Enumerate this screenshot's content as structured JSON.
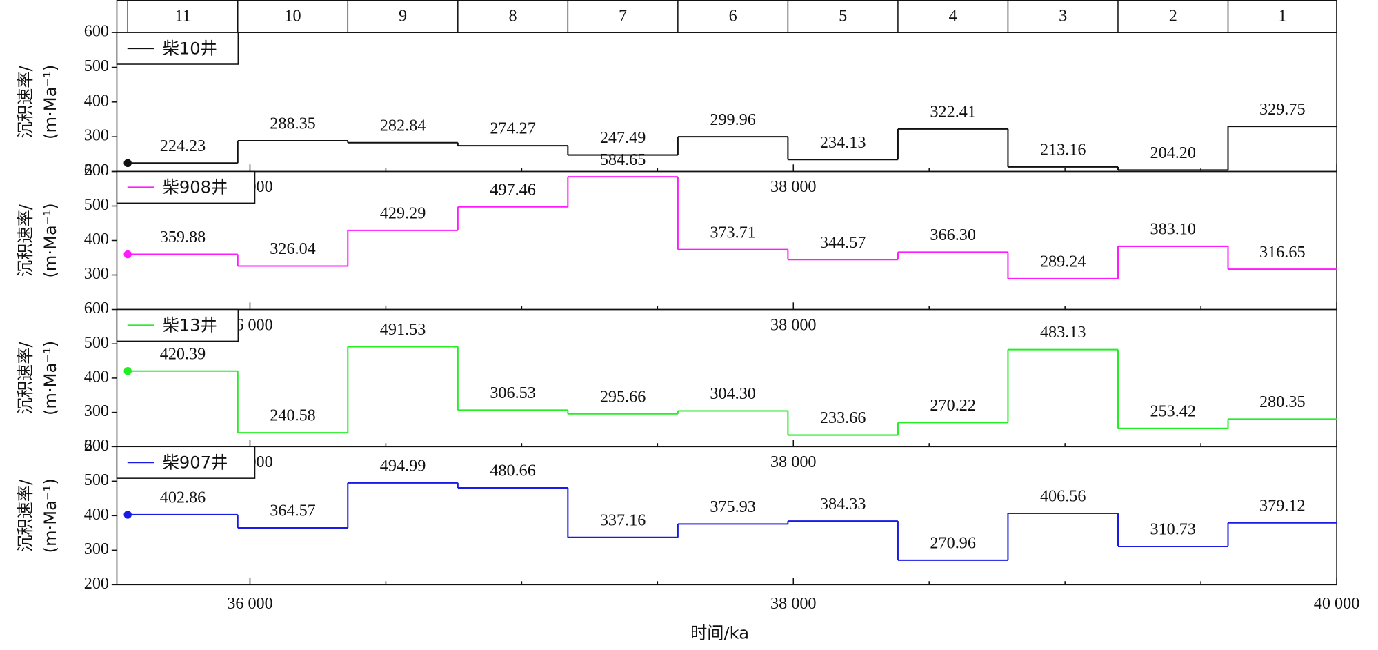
{
  "chart_data": {
    "type": "step",
    "categories": [
      "11",
      "10",
      "9",
      "8",
      "7",
      "6",
      "5",
      "4",
      "3",
      "2",
      "1"
    ],
    "bins": [
      35550,
      35955,
      36360,
      36765,
      37170,
      37575,
      37980,
      38385,
      38790,
      39195,
      39600,
      40000
    ],
    "xlim": [
      35510,
      40000
    ],
    "xticks": [
      {
        "value": 36000,
        "label": "36 000"
      },
      {
        "value": 38000,
        "label": "38 000"
      },
      {
        "value": 40000,
        "label": "40 000"
      }
    ],
    "xminorticks": [
      36500,
      37000,
      37500,
      38500,
      39000,
      39500
    ],
    "top_xticks": [
      {
        "value": 36000,
        "label": "36 000"
      },
      {
        "value": 38000,
        "label": "38 000"
      }
    ],
    "xlabel": "时间/ka",
    "ylabel": [
      "沉积速率/",
      "(m·Ma⁻¹)"
    ],
    "series": [
      {
        "name": "柴10井",
        "color": "#111111",
        "ylim": [
          200,
          600
        ],
        "yticks": [
          200,
          300,
          400,
          500,
          600
        ],
        "values": [
          224.23,
          288.35,
          282.84,
          274.27,
          247.49,
          299.96,
          234.13,
          322.41,
          213.16,
          204.2,
          329.75
        ],
        "value_labels": [
          "224.23",
          "288.35",
          "282.84",
          "274.27",
          "247.49",
          "299.96",
          "234.13",
          "322.41",
          "213.16",
          "204.20",
          "329.75"
        ]
      },
      {
        "name": "柴908井",
        "color": "#ff1aff",
        "ylim": [
          200,
          600
        ],
        "yticks": [
          300,
          400,
          500,
          600
        ],
        "values": [
          359.88,
          326.04,
          429.29,
          497.46,
          584.65,
          373.71,
          344.57,
          366.3,
          289.24,
          383.1,
          316.65
        ],
        "value_labels": [
          "359.88",
          "326.04",
          "429.29",
          "497.46",
          "584.65",
          "373.71",
          "344.57",
          "366.30",
          "289.24",
          "383.10",
          "316.65"
        ]
      },
      {
        "name": "柴13井",
        "color": "#22ee22",
        "ylim": [
          200,
          600
        ],
        "yticks": [
          200,
          300,
          400,
          500,
          600
        ],
        "values": [
          420.39,
          240.58,
          491.53,
          306.53,
          295.66,
          304.3,
          233.66,
          270.22,
          483.13,
          253.42,
          280.35
        ],
        "value_labels": [
          "420.39",
          "240.58",
          "491.53",
          "306.53",
          "295.66",
          "304.30",
          "233.66",
          "270.22",
          "483.13",
          "253.42",
          "280.35"
        ]
      },
      {
        "name": "柴907井",
        "color": "#1a1ae6",
        "ylim": [
          200,
          600
        ],
        "yticks": [
          200,
          300,
          400,
          500,
          600
        ],
        "values": [
          402.86,
          364.57,
          494.99,
          480.66,
          337.16,
          375.93,
          384.33,
          270.96,
          406.56,
          310.73,
          379.12
        ],
        "value_labels": [
          "402.86",
          "364.57",
          "494.99",
          "480.66",
          "337.16",
          "375.93",
          "384.33",
          "270.96",
          "406.56",
          "310.73",
          "379.12"
        ]
      }
    ]
  }
}
